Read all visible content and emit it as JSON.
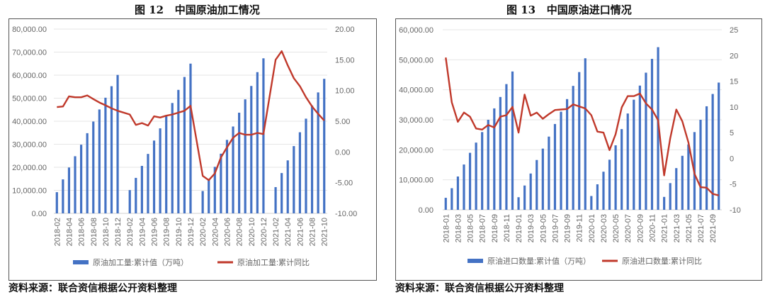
{
  "source_note": "资料来源：联合资信根据公开资料整理",
  "chart_data": [
    {
      "type": "bar+line",
      "title": "图 12   中国原油加工情况",
      "categories": [
        "2018-02",
        "2018-03",
        "2018-04",
        "2018-05",
        "2018-06",
        "2018-07",
        "2018-08",
        "2018-09",
        "2018-10",
        "2018-11",
        "2018-12",
        "2019-01",
        "2019-02",
        "2019-03",
        "2019-04",
        "2019-05",
        "2019-06",
        "2019-07",
        "2019-08",
        "2019-09",
        "2019-10",
        "2019-11",
        "2019-12",
        "2020-01",
        "2020-02",
        "2020-03",
        "2020-04",
        "2020-05",
        "2020-06",
        "2020-07",
        "2020-08",
        "2020-09",
        "2020-10",
        "2020-11",
        "2020-12",
        "2021-01",
        "2021-02",
        "2021-03",
        "2021-04",
        "2021-05",
        "2021-06",
        "2021-07",
        "2021-08",
        "2021-09",
        "2021-10"
      ],
      "tick_labels": [
        "2018-02",
        "2018-04",
        "2018-06",
        "2018-08",
        "2018-10",
        "2018-12",
        "2019-02",
        "2019-04",
        "2019-06",
        "2019-08",
        "2019-10",
        "2019-12",
        "2020-02",
        "2020-04",
        "2020-06",
        "2020-08",
        "2020-10",
        "2020-12",
        "2021-02",
        "2021-04",
        "2021-06",
        "2021-08",
        "2021-10"
      ],
      "series": [
        {
          "name": "原油加工量:累计值（万吨）",
          "type": "bar",
          "axis": "left",
          "color": "#4472c4",
          "values": [
            9200,
            14750,
            19900,
            24800,
            29800,
            34800,
            39850,
            45100,
            50200,
            55200,
            60100,
            null,
            10100,
            15400,
            20600,
            25800,
            31600,
            36900,
            42300,
            47900,
            53600,
            59200,
            65000,
            null,
            9700,
            15000,
            20200,
            25900,
            31900,
            37700,
            43700,
            49500,
            55300,
            61300,
            67300,
            null,
            11400,
            17500,
            23000,
            29200,
            35200,
            41100,
            46800,
            52500,
            58400
          ]
        },
        {
          "name": "原油加工量:累计同比",
          "type": "line",
          "axis": "right",
          "color": "#c0392b",
          "values": [
            7.3,
            7.4,
            9.05,
            8.9,
            8.9,
            9.2,
            8.6,
            8.05,
            7.6,
            7.1,
            6.7,
            null,
            6.1,
            4.4,
            4.7,
            4.3,
            5.8,
            5.6,
            5.9,
            6.1,
            6.4,
            6.7,
            7.5,
            null,
            -3.9,
            -4.6,
            -3.5,
            -0.9,
            0.75,
            2.3,
            3.1,
            2.8,
            2.8,
            3.1,
            2.9,
            null,
            15.0,
            16.4,
            14.1,
            12.0,
            10.7,
            8.9,
            7.4,
            6.2,
            5.1
          ]
        }
      ],
      "ylim_left": [
        0,
        80000
      ],
      "yticks_left": [
        "0.00",
        "10,000.00",
        "20,000.00",
        "30,000.00",
        "40,000.00",
        "50,000.00",
        "60,000.00",
        "70,000.00",
        "80,000.00"
      ],
      "ylim_right": [
        -10,
        20
      ],
      "yticks_right": [
        "-10.00",
        "-5.00",
        "0.00",
        "5.00",
        "10.00",
        "15.00",
        "20.00"
      ],
      "grid": true,
      "legend": "bottom"
    },
    {
      "type": "bar+line",
      "title": "图 13   中国原油进口情况",
      "categories": [
        "2018-01",
        "2018-02",
        "2018-03",
        "2018-04",
        "2018-05",
        "2018-06",
        "2018-07",
        "2018-08",
        "2018-09",
        "2018-10",
        "2018-11",
        "2018-12",
        "2019-01",
        "2019-02",
        "2019-03",
        "2019-04",
        "2019-05",
        "2019-06",
        "2019-07",
        "2019-08",
        "2019-09",
        "2019-10",
        "2019-11",
        "2019-12",
        "2020-01",
        "2020-02",
        "2020-03",
        "2020-04",
        "2020-05",
        "2020-06",
        "2020-07",
        "2020-08",
        "2020-09",
        "2020-10",
        "2020-11",
        "2020-12",
        "2021-01",
        "2021-02",
        "2021-03",
        "2021-04",
        "2021-05",
        "2021-06",
        "2021-07",
        "2021-08",
        "2021-09",
        "2021-10"
      ],
      "tick_labels": [
        "2018-01",
        "2018-03",
        "2018-05",
        "2018-07",
        "2018-09",
        "2018-11",
        "2019-01",
        "2019-03",
        "2019-05",
        "2019-07",
        "2019-09",
        "2019-11",
        "2020-01",
        "2020-03",
        "2020-05",
        "2020-07",
        "2020-09",
        "2020-11",
        "2021-01",
        "2021-03",
        "2021-05",
        "2021-07",
        "2021-09"
      ],
      "series": [
        {
          "name": "原油进口数量:累计值（万吨）",
          "type": "bar",
          "axis": "left",
          "color": "#4472c4",
          "values": [
            4000,
            7200,
            11100,
            15100,
            19000,
            22400,
            25900,
            30000,
            33800,
            37600,
            41900,
            46100,
            4200,
            8100,
            12100,
            16600,
            20400,
            24400,
            28600,
            32700,
            36900,
            41300,
            45900,
            50500,
            4600,
            8500,
            12700,
            16700,
            21500,
            26900,
            32100,
            36700,
            41400,
            45700,
            50300,
            54200,
            4300,
            8900,
            13900,
            18000,
            21800,
            25900,
            30000,
            34500,
            38600,
            42400
          ]
        },
        {
          "name": "原油进口数量:累计同比",
          "type": "line",
          "axis": "right",
          "color": "#c0392b",
          "values": [
            19.6,
            10.9,
            7.1,
            8.9,
            8.1,
            5.8,
            5.6,
            6.5,
            6.0,
            8.1,
            8.4,
            10.0,
            5.0,
            12.4,
            8.3,
            8.9,
            7.7,
            8.6,
            9.4,
            9.5,
            9.6,
            10.5,
            10.1,
            9.7,
            8.4,
            5.2,
            5.0,
            1.6,
            4.7,
            9.9,
            12.1,
            12.1,
            12.6,
            10.7,
            9.5,
            7.4,
            -3.3,
            3.9,
            9.5,
            7.2,
            3.1,
            -3.0,
            -5.6,
            -5.7,
            -6.9,
            -7.2
          ]
        }
      ],
      "ylim_left": [
        0,
        60000
      ],
      "yticks_left": [
        "0.00",
        "10,000.00",
        "20,000.00",
        "30,000.00",
        "40,000.00",
        "50,000.00",
        "60,000.00"
      ],
      "ylim_right": [
        -10,
        25
      ],
      "yticks_right": [
        "-10",
        "-5",
        "0",
        "5",
        "10",
        "15",
        "20",
        "25"
      ],
      "grid": true,
      "legend": "bottom"
    }
  ]
}
